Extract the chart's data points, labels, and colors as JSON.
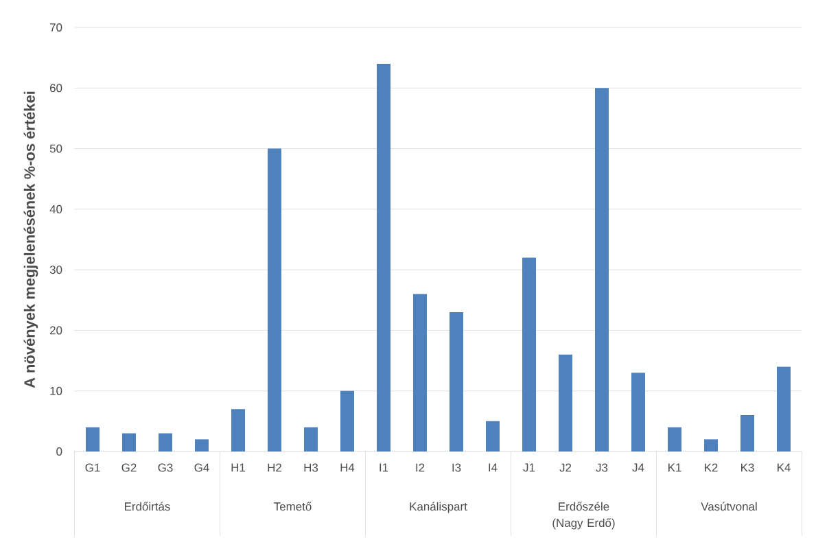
{
  "chart_data": {
    "type": "bar",
    "ylabel": "A növények megjelenésének %-os értékei",
    "categories": [
      "G1",
      "G2",
      "G3",
      "G4",
      "H1",
      "H2",
      "H3",
      "H4",
      "I1",
      "I2",
      "I3",
      "I4",
      "J1",
      "J2",
      "J3",
      "J4",
      "K1",
      "K2",
      "K3",
      "K4"
    ],
    "values": [
      4,
      3,
      3,
      2,
      7,
      50,
      4,
      10,
      64,
      26,
      23,
      5,
      32,
      16,
      60,
      13,
      4,
      2,
      6,
      14
    ],
    "color": "#4f81bd",
    "ylim": [
      0,
      70
    ],
    "yticks": [
      0,
      10,
      20,
      30,
      40,
      50,
      60,
      70
    ],
    "grid": "y",
    "annotations": [
      "Erdőirtás",
      "Temető",
      "Kanálispart",
      "Erdőszéle (Nagy Erdő)",
      "Vasútvonal"
    ]
  }
}
